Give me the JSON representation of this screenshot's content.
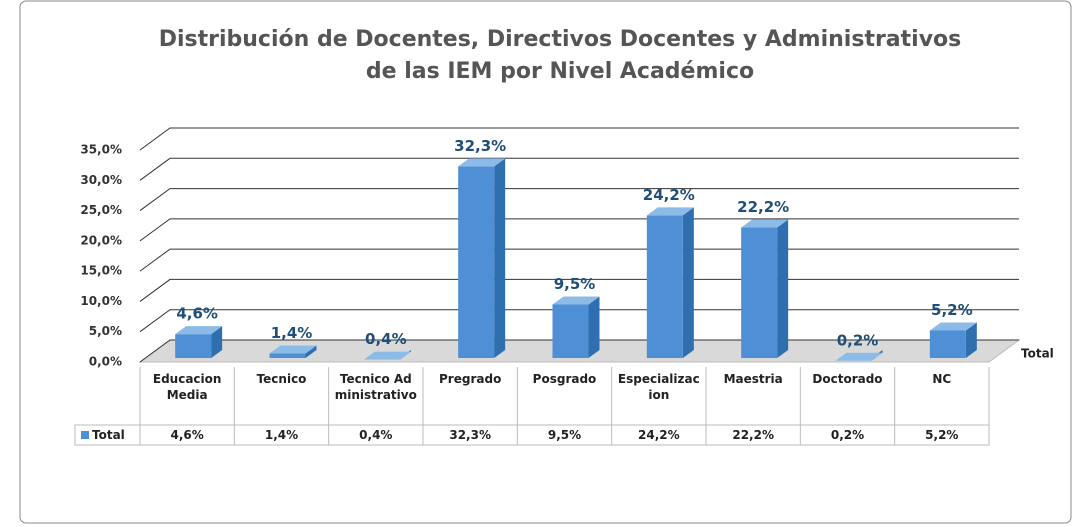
{
  "chart_data": {
    "type": "bar3d",
    "title": [
      "Distribución de Docentes, Directivos Docentes y Administrativos",
      "de las IEM por Nivel Académico"
    ],
    "categories": [
      "Educacion Media",
      "Tecnico",
      "Tecnico Administrativo",
      "Pregrado",
      "Posgrado",
      "Especializacion",
      "Maestria",
      "Doctorado",
      "NC"
    ],
    "series": [
      {
        "name": "Total",
        "color": "#4f8fd6",
        "values": [
          4.6,
          1.4,
          0.4,
          32.3,
          9.5,
          24.2,
          22.2,
          0.2,
          5.2
        ],
        "value_labels": [
          "4,6%",
          "1,4%",
          "0,4%",
          "32,3%",
          "9,5%",
          "24,2%",
          "22,2%",
          "0,2%",
          "5,2%"
        ]
      }
    ],
    "ylim": [
      0,
      35
    ],
    "yticks": [
      {
        "value": 0,
        "label": "0,0%"
      },
      {
        "value": 5,
        "label": "5,0%"
      },
      {
        "value": 10,
        "label": "10,0%"
      },
      {
        "value": 15,
        "label": "15,0%"
      },
      {
        "value": 20,
        "label": "20,0%"
      },
      {
        "value": 25,
        "label": "25,0%"
      },
      {
        "value": 30,
        "label": "30,0%"
      },
      {
        "value": 35,
        "label": "35,0%"
      }
    ],
    "grid": true,
    "data_table": true
  }
}
